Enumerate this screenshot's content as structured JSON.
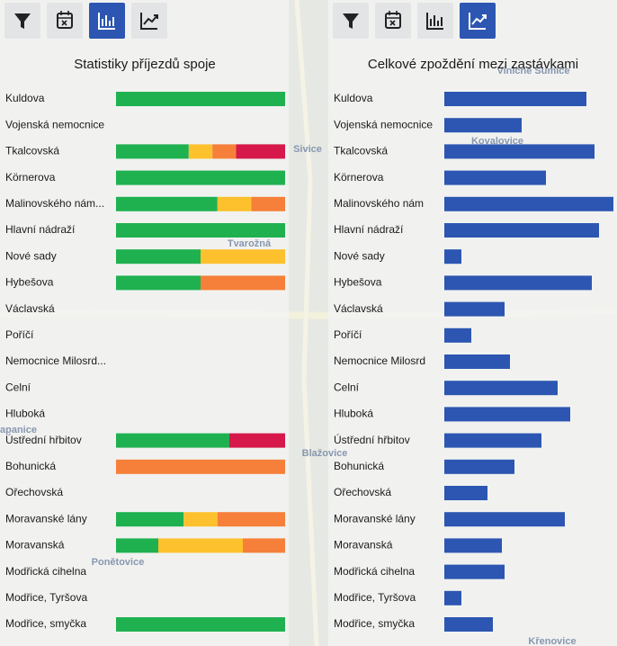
{
  "chart_data": [
    {
      "type": "stacked_bar",
      "title": "Statistiky příjezdů spoje",
      "categories": [
        "Kuldova",
        "Vojenská nemocnice",
        "Tkalcovská",
        "Körnerova",
        "Malinovského nám...",
        "Hlavní nádraží",
        "Nové sady",
        "Hybešova",
        "Václavská",
        "Poříčí",
        "Nemocnice Milosrd...",
        "Celní",
        "Hluboká",
        "Ústřední hřbitov",
        "Bohunická",
        "Ořechovská",
        "Moravanské lány",
        "Moravanská",
        "Modřická cihelna",
        "Modřice, Tyršova",
        "Modřice, smyčka"
      ],
      "xlim": [
        0,
        100
      ],
      "series": [
        {
          "color": "#1fb150",
          "values": [
            100,
            null,
            43,
            100,
            60,
            100,
            50,
            50,
            null,
            null,
            null,
            null,
            null,
            67,
            0,
            null,
            40,
            25,
            null,
            null,
            100
          ]
        },
        {
          "color": "#fdc12e",
          "values": [
            0,
            null,
            14,
            0,
            20,
            0,
            50,
            0,
            null,
            null,
            null,
            null,
            null,
            0,
            0,
            null,
            20,
            50,
            null,
            null,
            0
          ]
        },
        {
          "color": "#f6803a",
          "values": [
            0,
            null,
            14,
            0,
            20,
            0,
            0,
            50,
            null,
            null,
            null,
            null,
            null,
            0,
            100,
            null,
            40,
            25,
            null,
            null,
            0
          ]
        },
        {
          "color": "#d6184a",
          "values": [
            0,
            null,
            29,
            0,
            0,
            0,
            0,
            0,
            null,
            null,
            null,
            null,
            null,
            33,
            0,
            null,
            0,
            0,
            null,
            null,
            0
          ]
        }
      ]
    },
    {
      "type": "bar",
      "title": "Celkové zpoždění mezi zastávkami",
      "categories": [
        "Kuldova",
        "Vojenská nemocnice",
        "Tkalcovská",
        "Körnerova",
        "Malinovského nám",
        "Hlavní nádraží",
        "Nové sady",
        "Hybešova",
        "Václavská",
        "Poříčí",
        "Nemocnice Milosrd",
        "Celní",
        "Hluboká",
        "Ústřední hřbitov",
        "Bohunická",
        "Ořechovská",
        "Moravanské lány",
        "Moravanská",
        "Modřická cihelna",
        "Modřice, Tyršova",
        "Modřice, smyčka"
      ],
      "xlim": [
        0,
        192
      ],
      "color": "#2c56b1",
      "values": [
        158,
        86,
        167,
        113,
        188,
        172,
        19,
        164,
        67,
        30,
        73,
        126,
        140,
        108,
        78,
        48,
        134,
        64,
        67,
        19,
        54
      ]
    }
  ],
  "map_labels": [
    "Sivice",
    "Tvarožná",
    "Blažovice",
    "Ponětovice",
    "apanice",
    "Kovalovice",
    "Viničné Šumice",
    "Křenovice"
  ]
}
